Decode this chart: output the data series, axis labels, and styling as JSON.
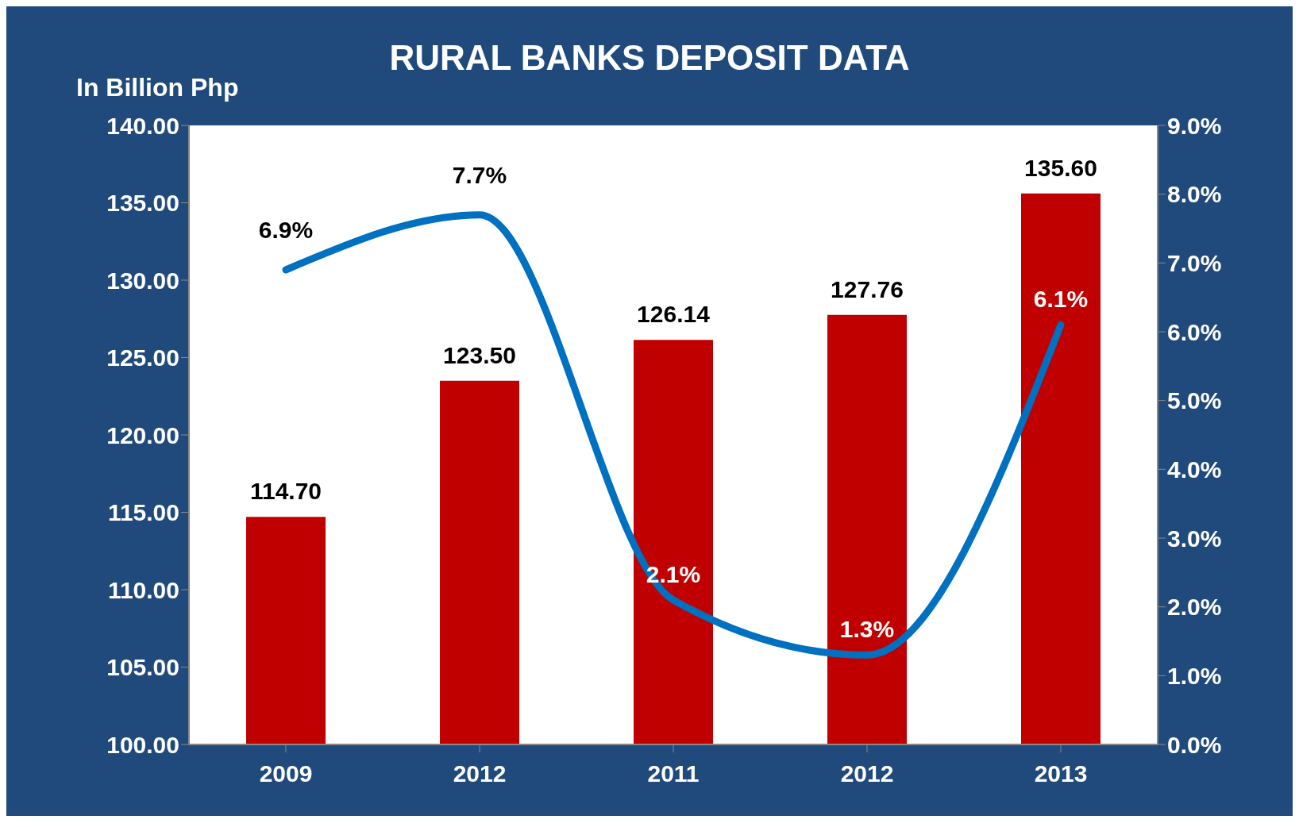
{
  "chart_data": {
    "type": "bar",
    "title": "RURAL BANKS DEPOSIT DATA",
    "ylabel": "In Billion Php",
    "categories": [
      "2009",
      "2012",
      "2011",
      "2012",
      "2013"
    ],
    "series": [
      {
        "color": "#c00000",
        "values": [
          114.7,
          123.5,
          126.14,
          127.76,
          135.6
        ],
        "value_labels": [
          "114.70",
          "123.50",
          "126.14",
          "127.76",
          "135.60"
        ]
      },
      {
        "type": "line",
        "axis": "y2",
        "color": "#0070c0",
        "values": [
          6.9,
          7.7,
          2.1,
          1.3,
          6.1
        ],
        "value_labels": [
          "6.9%",
          "7.7%",
          "2.1%",
          "1.3%",
          "6.1%"
        ]
      }
    ],
    "ylim": [
      100,
      140
    ],
    "yticks": [
      {
        "value": 100,
        "label": "100.00"
      },
      {
        "value": 105,
        "label": "105.00"
      },
      {
        "value": 110,
        "label": "110.00"
      },
      {
        "value": 115,
        "label": "115.00"
      },
      {
        "value": 120,
        "label": "120.00"
      },
      {
        "value": 125,
        "label": "125.00"
      },
      {
        "value": 130,
        "label": "130.00"
      },
      {
        "value": 135,
        "label": "135.00"
      },
      {
        "value": 140,
        "label": "140.00"
      }
    ],
    "y2lim": [
      0,
      9
    ],
    "y2ticks": [
      {
        "value": 0,
        "label": "0.0%"
      },
      {
        "value": 1,
        "label": "1.0%"
      },
      {
        "value": 2,
        "label": "2.0%"
      },
      {
        "value": 3,
        "label": "3.0%"
      },
      {
        "value": 4,
        "label": "4.0%"
      },
      {
        "value": 5,
        "label": "5.0%"
      },
      {
        "value": 6,
        "label": "6.0%"
      },
      {
        "value": 7,
        "label": "7.0%"
      },
      {
        "value": 8,
        "label": "8.0%"
      },
      {
        "value": 9,
        "label": "9.0%"
      }
    ],
    "marker": "none",
    "line_style": "solid"
  }
}
